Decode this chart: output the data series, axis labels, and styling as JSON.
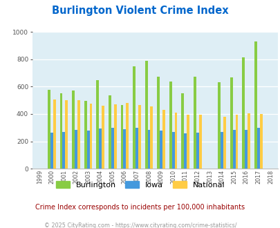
{
  "title": "Burlington Violent Crime Index",
  "years": [
    1999,
    2000,
    2001,
    2002,
    2003,
    2004,
    2005,
    2006,
    2007,
    2008,
    2009,
    2010,
    2011,
    2012,
    2013,
    2014,
    2015,
    2016,
    2017,
    2018
  ],
  "burlington": [
    0,
    578,
    550,
    572,
    498,
    648,
    534,
    468,
    751,
    791,
    673,
    636,
    554,
    673,
    0,
    630,
    666,
    812,
    928,
    0
  ],
  "iowa": [
    0,
    264,
    271,
    285,
    277,
    293,
    300,
    287,
    300,
    285,
    280,
    271,
    257,
    263,
    0,
    271,
    284,
    284,
    299,
    0
  ],
  "national": [
    0,
    507,
    501,
    499,
    475,
    463,
    469,
    479,
    468,
    458,
    432,
    408,
    397,
    397,
    0,
    382,
    395,
    403,
    399,
    0
  ],
  "burlington_color": "#88cc44",
  "iowa_color": "#4499dd",
  "national_color": "#ffcc44",
  "bg_color": "#deeef5",
  "ylim": [
    0,
    1000
  ],
  "ylabel_ticks": [
    0,
    200,
    400,
    600,
    800,
    1000
  ],
  "footnote": "Crime Index corresponds to incidents per 100,000 inhabitants",
  "copyright": "© 2025 CityRating.com - https://www.cityrating.com/crime-statistics/",
  "bar_width": 0.22,
  "title_color": "#0066cc",
  "footnote_color": "#990000",
  "copyright_color": "#999999"
}
